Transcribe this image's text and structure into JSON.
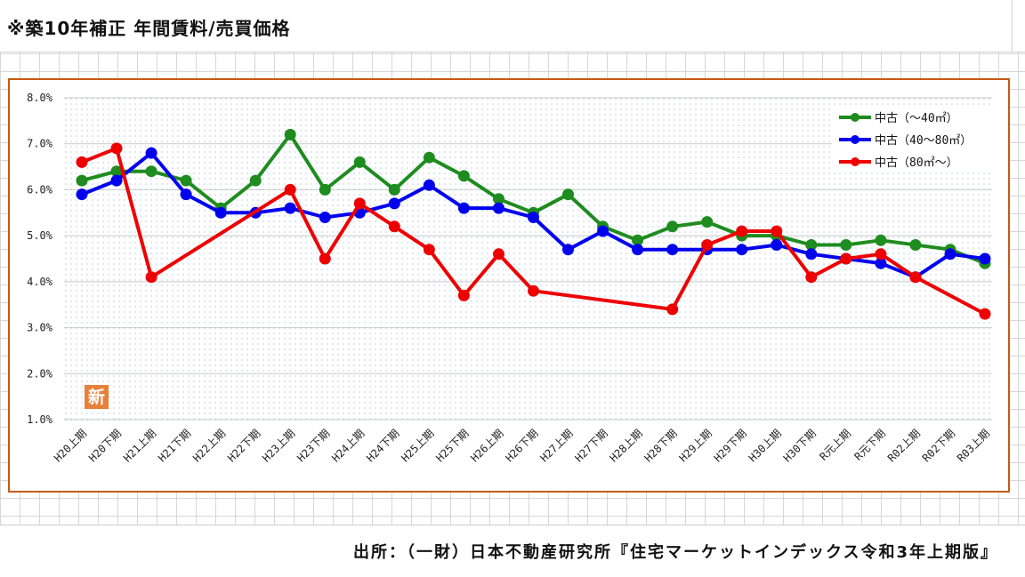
{
  "page_title": "※築10年補正 年間賃料/売買価格",
  "source": "出所：（一財）日本不動産研究所『住宅マーケットインデックス令和3年上期版』",
  "badge_char": "新",
  "colors": {
    "frame": "#c55a11",
    "series": [
      "#1e8c1e",
      "#0000ee",
      "#ee0000"
    ],
    "badge": "#e8803a"
  },
  "chart_data": {
    "type": "line",
    "categories": [
      "H20上期",
      "H20下期",
      "H21上期",
      "H21下期",
      "H22上期",
      "H22下期",
      "H23上期",
      "H23下期",
      "H24上期",
      "H24下期",
      "H25上期",
      "H25下期",
      "H26上期",
      "H26下期",
      "H27上期",
      "H27下期",
      "H28上期",
      "H28下期",
      "H29上期",
      "H29下期",
      "H30上期",
      "H30下期",
      "R元上期",
      "R元下期",
      "R02上期",
      "R02下期",
      "R03上期"
    ],
    "ylim": [
      1.0,
      8.0
    ],
    "yticks": [
      "1.0%",
      "2.0%",
      "3.0%",
      "4.0%",
      "5.0%",
      "6.0%",
      "7.0%",
      "8.0%"
    ],
    "grid": "dotted",
    "legend_position": "top-right",
    "series": [
      {
        "name": "中古（～40㎡）",
        "values": [
          6.2,
          6.4,
          6.4,
          6.2,
          5.6,
          6.2,
          7.2,
          6.0,
          6.6,
          6.0,
          6.7,
          6.3,
          5.8,
          5.5,
          5.9,
          5.2,
          4.9,
          5.2,
          5.3,
          5.0,
          5.0,
          4.8,
          4.8,
          4.9,
          4.8,
          4.7,
          4.4
        ]
      },
      {
        "name": "中古（40～80㎡）",
        "values": [
          5.9,
          6.2,
          6.8,
          5.9,
          5.5,
          5.5,
          5.6,
          5.4,
          5.5,
          5.7,
          6.1,
          5.6,
          5.6,
          5.4,
          4.7,
          5.1,
          4.7,
          4.7,
          4.7,
          4.7,
          4.8,
          4.6,
          4.5,
          4.4,
          4.1,
          4.6,
          4.5
        ]
      },
      {
        "name": "中古（80㎡～）",
        "values": [
          6.6,
          6.9,
          4.1,
          null,
          null,
          null,
          6.0,
          4.5,
          5.7,
          5.2,
          4.7,
          3.7,
          4.6,
          3.8,
          null,
          null,
          null,
          3.4,
          4.8,
          5.1,
          5.1,
          4.1,
          4.5,
          4.6,
          4.1,
          null,
          3.3
        ]
      }
    ]
  }
}
